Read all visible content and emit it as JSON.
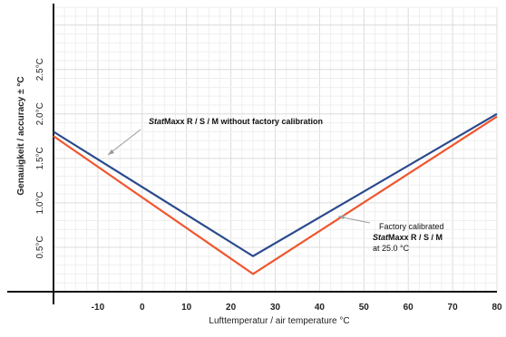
{
  "chart_data": {
    "type": "line",
    "xlabel": "Lufttemperatur / air temperature °C",
    "ylabel": "Genauigkeit / accuracy ± °C",
    "xlim": [
      -20,
      80
    ],
    "ylim": [
      0,
      3.2
    ],
    "x_ticks": [
      "-10",
      "0",
      "10",
      "20",
      "30",
      "40",
      "50",
      "60",
      "70",
      "80"
    ],
    "y_ticks": [
      "0.5°C",
      "1.0°C",
      "1.5°C",
      "2.0°C",
      "2.5°C"
    ],
    "grid": true,
    "series": [
      {
        "color": "#2b4a8c",
        "x": [
          -20,
          25,
          80
        ],
        "y": [
          1.8,
          0.4,
          2.0
        ]
      },
      {
        "color": "#f0562e",
        "x": [
          -20,
          25,
          80
        ],
        "y": [
          1.75,
          0.2,
          1.97
        ]
      }
    ],
    "annotations": {
      "uncalibrated": {
        "brand": "Stat",
        "rest": "Maxx R / S / M without factory calibration"
      },
      "calibrated": {
        "line1": "Factory calibrated",
        "brand": "Stat",
        "line2_rest": "Maxx R / S / M",
        "line3": "at 25.0 °C"
      }
    }
  }
}
